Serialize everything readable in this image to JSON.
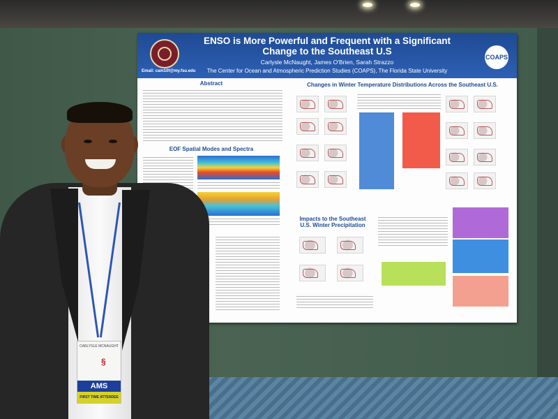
{
  "poster": {
    "title": "ENSO is More Powerful and Frequent with a Significant Change to the Southeast U.S",
    "authors": "Carlysle McNaught, James O'Brien, Sarah Strazzo",
    "institution": "The Center for Ocean and Atmospheric Prediction Studies (COAPS), The Florida State University",
    "email": "Email: cam10f@my.fsu.edu",
    "logo_right": "COAPS",
    "sections": {
      "abstract": "Abstract",
      "eof": "EOF Spatial Modes and Spectra",
      "temperature": "Changes in Winter Temperature Distributions Across the Southeast U.S.",
      "precipitation": "Impacts to the Southeast U.S. Winter Precipitation"
    }
  },
  "badge": {
    "name": "CARLYSLE MCNAUGHT",
    "org": "AMS",
    "ribbon": "FIRST TIME ATTENDEE"
  },
  "colors": {
    "header_blue": "#1f4a93",
    "badge_blue": "#1d3f9c",
    "ribbon_yellow": "#d6d226"
  }
}
